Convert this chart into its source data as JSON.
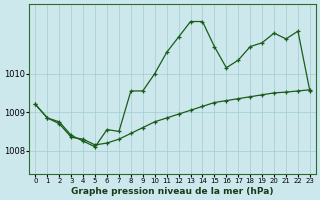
{
  "xlabel": "Graphe pression niveau de la mer (hPa)",
  "background_color": "#cde8ec",
  "line_color": "#1a5c1a",
  "grid_color": "#9ecece",
  "yticks": [
    1008,
    1009,
    1010
  ],
  "ylim": [
    1007.4,
    1011.8
  ],
  "xlim": [
    -0.5,
    23.5
  ],
  "xticks": [
    0,
    1,
    2,
    3,
    4,
    5,
    6,
    7,
    8,
    9,
    10,
    11,
    12,
    13,
    14,
    15,
    16,
    17,
    18,
    19,
    20,
    21,
    22,
    23
  ],
  "series1_x": [
    0,
    1,
    2,
    3,
    4,
    5,
    6,
    7,
    8,
    9,
    10,
    11,
    12,
    13,
    14,
    15,
    16,
    17,
    18,
    19,
    20,
    21,
    22,
    23
  ],
  "series1_y": [
    1009.2,
    1008.85,
    1008.75,
    1008.4,
    1008.25,
    1008.1,
    1008.55,
    1008.5,
    1009.55,
    1009.55,
    1010.0,
    1010.55,
    1010.95,
    1011.35,
    1011.35,
    1010.7,
    1010.15,
    1010.35,
    1010.7,
    1010.8,
    1011.05,
    1010.9,
    1011.1,
    1009.55
  ],
  "series2_x": [
    0,
    1,
    2,
    3,
    4,
    5,
    6,
    7,
    8,
    9,
    10,
    11,
    12,
    13,
    14,
    15,
    16,
    17,
    18,
    19,
    20,
    21,
    22,
    23
  ],
  "series2_y": [
    1009.2,
    1008.85,
    1008.7,
    1008.35,
    1008.3,
    1008.15,
    1008.2,
    1008.3,
    1008.45,
    1008.6,
    1008.75,
    1008.85,
    1008.95,
    1009.05,
    1009.15,
    1009.25,
    1009.3,
    1009.35,
    1009.4,
    1009.45,
    1009.5,
    1009.52,
    1009.55,
    1009.58
  ]
}
